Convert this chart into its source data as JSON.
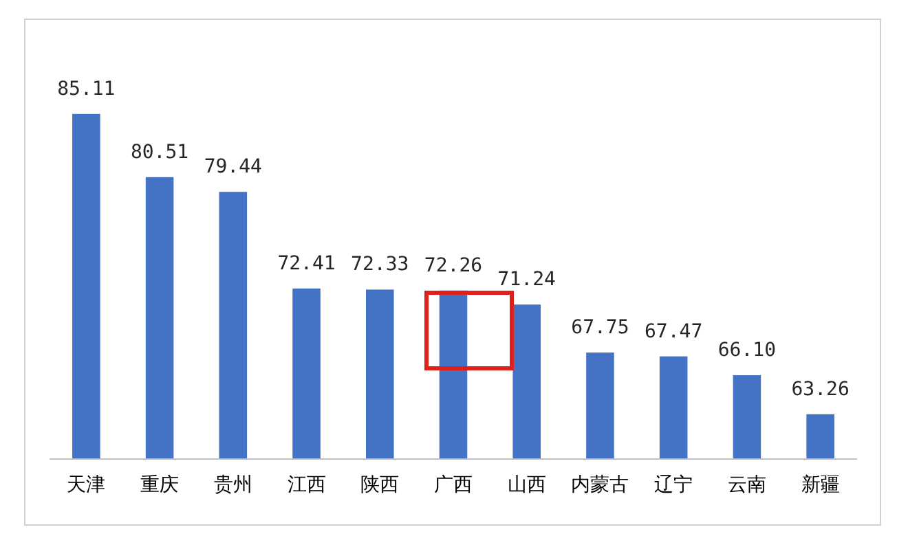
{
  "chart_data": {
    "type": "bar",
    "categories": [
      "天津",
      "重庆",
      "贵州",
      "江西",
      "陕西",
      "广西",
      "山西",
      "内蒙古",
      "辽宁",
      "云南",
      "新疆"
    ],
    "values": [
      85.11,
      80.51,
      79.44,
      72.41,
      72.33,
      72.26,
      71.24,
      67.75,
      67.47,
      66.1,
      63.26
    ],
    "value_labels": [
      "85.11",
      "80.51",
      "79.44",
      "72.41",
      "72.33",
      "72.26",
      "71.24",
      "67.75",
      "67.47",
      "66.10",
      "63.26"
    ],
    "color": "#4472c4",
    "ylim": [
      60,
      92
    ],
    "tick_labels": "x"
  }
}
